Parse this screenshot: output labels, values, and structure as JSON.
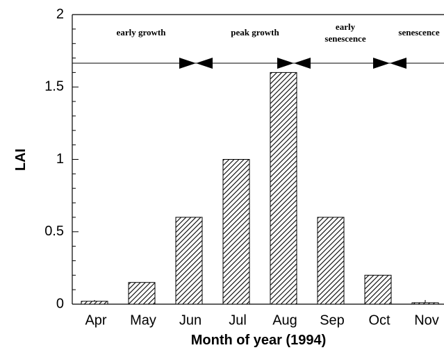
{
  "chart_data": {
    "type": "bar",
    "categories": [
      "Apr",
      "May",
      "Jun",
      "Jul",
      "Aug",
      "Sep",
      "Oct",
      "Nov"
    ],
    "values": [
      0.02,
      0.15,
      0.6,
      1.0,
      1.6,
      0.6,
      0.2,
      0.01
    ],
    "color": "#000000",
    "x_label": "Month of year (1994)",
    "y_label": "LAI",
    "ylim": [
      0,
      2
    ],
    "yticks": [
      0,
      0.5,
      1,
      1.5,
      2
    ],
    "phases": [
      [
        "early growth"
      ],
      [
        "peak growth"
      ],
      [
        "early",
        "senescence"
      ],
      [
        "senescence"
      ]
    ]
  }
}
